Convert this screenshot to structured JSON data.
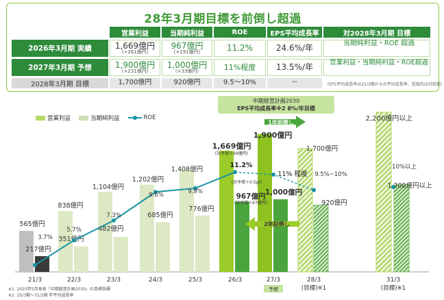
{
  "header": {
    "title": "28年3月期目標を前倒し超過",
    "columns": [
      "営業利益",
      "当期純利益",
      "ROE",
      "EPS平均成長率",
      "対2028年3月期 目標"
    ],
    "rows": [
      {
        "label": "2026年3月期 実績",
        "op": "1,669億円",
        "op_sub": "(+261億円)",
        "ni": "967億円",
        "ni_sub": "(+191億円)",
        "roe": "11.2%",
        "eps": "24.6%/年",
        "target": "当期純利益・ROE 超過"
      },
      {
        "label": "2027年3月期 予想",
        "op": "1,900億円",
        "op_sub": "(+231億円)",
        "ni": "1,000億円",
        "ni_sub": "(+33億円)",
        "roe": "11%程度",
        "eps": "13.5%/年",
        "target": "営業利益・当期純利益・ROE超過"
      },
      {
        "label": "2028年3月期 目標",
        "op": "1,700億円",
        "op_sub": "",
        "ni": "920億円",
        "ni_sub": "",
        "roe": "9.5～10%",
        "eps": "－",
        "target": ""
      }
    ],
    "note": "（EPS平均成長率は25/3期からの平均成長率、括弧内は対前期）"
  },
  "callout": {
    "line1": "中期経営計画2030",
    "line2": "EPS平均成長率※2 8%/年目標"
  },
  "arrows": {
    "one_year": "1年前倒し",
    "two_year": "2年前倒し"
  },
  "footnotes": [
    "※1. 2025年5月発表「中期経営計画2030」の目標指標",
    "※2. 25/3期～31/3期 年平均成長率"
  ],
  "colors": {
    "dark_green": "#2e8b3a",
    "light_green": "#8cc63f",
    "pale_green": "#d7e8bd",
    "gray": "#bfbfbf",
    "dark_gray": "#3a3a3a",
    "teal": "#1a93a5",
    "mid_green": "#4aa63c",
    "bright_green": "#8dc21f"
  },
  "chart_data": {
    "type": "bar",
    "legend": [
      "営業利益",
      "当期純利益",
      "ROE"
    ],
    "categories": [
      "21/3",
      "22/3",
      "23/3",
      "24/3",
      "25/3",
      "26/3",
      "27/3",
      "28/3\n(目標)",
      "31/3\n(目標)"
    ],
    "category_labels": [
      "21/3",
      "22/3",
      "23/3",
      "24/3",
      "25/3",
      "26/3",
      "27/3",
      "28/3",
      "31/3"
    ],
    "category_sub": [
      "",
      "",
      "",
      "",
      "",
      "",
      "予想",
      "(目標)※1",
      "(目標)※1"
    ],
    "series": [
      {
        "name": "営業利益",
        "values": [
          565,
          838,
          1104,
          1202,
          1408,
          1669,
          1900,
          1700,
          2200
        ],
        "labels": [
          "565億円",
          "838億円",
          "1,104億円",
          "1,202億円",
          "1,408億円",
          "1,669億円",
          "1,900億円",
          "1,700億円",
          "2,200億円以上"
        ]
      },
      {
        "name": "当期純利益",
        "values": [
          217,
          351,
          482,
          685,
          776,
          967,
          1000,
          920,
          1200
        ],
        "labels": [
          "217億円",
          "351億円",
          "482億円",
          "685億円",
          "776億円",
          "967億円",
          "1,000億円",
          "920億円",
          "1,200億円以上"
        ]
      },
      {
        "name": "ROE",
        "values": [
          3.7,
          5.7,
          7.3,
          9.6,
          9.9,
          11.2,
          11,
          9.75,
          10
        ],
        "labels": [
          "3.7%",
          "5.7%",
          "7.3%",
          "9.6%",
          "9.9%",
          "11.2%",
          "11% 程度",
          "9.5%~10%",
          "10%以上"
        ]
      }
    ],
    "sublabels": {
      "op_26": "(対予想＋69億円)",
      "roe_26": "(対予想＋0.5pt)",
      "ni_26": "(対予想＋67億円)"
    }
  }
}
